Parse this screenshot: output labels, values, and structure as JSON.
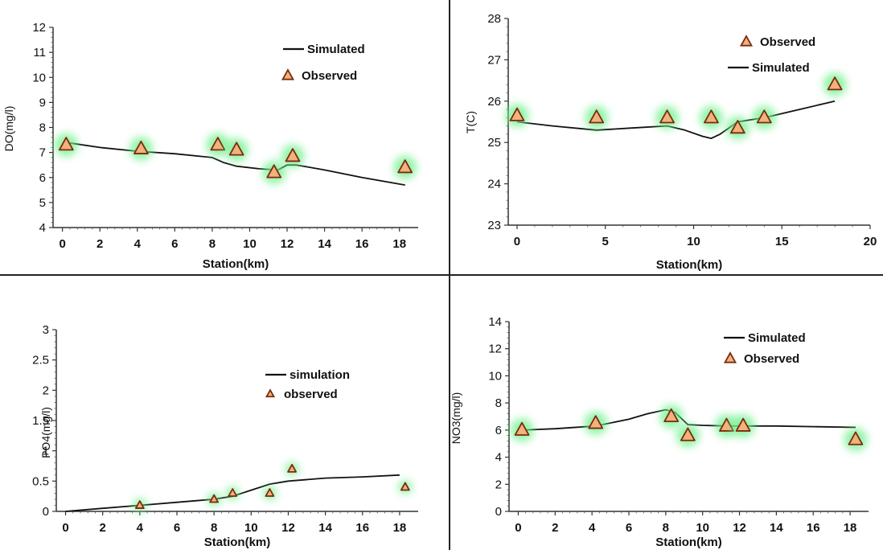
{
  "colors": {
    "line": "#111111",
    "marker_fill": "#f2b27a",
    "marker_stroke": "#7a2a10",
    "marker_glow": "#6df08a",
    "divider": "#222222"
  },
  "chart_data": [
    {
      "type": "line",
      "xlabel": "Station(km)",
      "ylabel": "DO(mg/l)",
      "xlim": [
        -0.5,
        19
      ],
      "ylim": [
        4,
        12
      ],
      "xticks": [
        "0",
        "2",
        "4",
        "6",
        "8",
        "10",
        "12",
        "14",
        "16",
        "18"
      ],
      "yticks": [
        "4",
        "5",
        "6",
        "7",
        "8",
        "9",
        "10",
        "11",
        "12"
      ],
      "legend_position": "top-right",
      "series": [
        {
          "name": "Simulated",
          "kind": "line",
          "x": [
            0.2,
            2,
            4,
            6,
            8,
            8.6,
            9.3,
            10.5,
            11.5,
            12,
            12.5,
            14,
            16,
            18.3
          ],
          "y": [
            7.4,
            7.2,
            7.05,
            6.95,
            6.8,
            6.6,
            6.45,
            6.35,
            6.3,
            6.5,
            6.5,
            6.3,
            6.0,
            5.7
          ]
        },
        {
          "name": "Observed",
          "kind": "marker",
          "x": [
            0.2,
            4.2,
            8.3,
            9.3,
            11.3,
            12.3,
            18.3
          ],
          "y": [
            7.3,
            7.15,
            7.3,
            7.1,
            6.2,
            6.85,
            6.4
          ]
        }
      ]
    },
    {
      "type": "line",
      "xlabel": "Station(km)",
      "ylabel": "T(C)",
      "xlim": [
        -0.5,
        20
      ],
      "ylim": [
        23,
        28
      ],
      "xticks": [
        "0",
        "5",
        "10",
        "15",
        "20"
      ],
      "yticks": [
        "23",
        "24",
        "25",
        "26",
        "27",
        "28"
      ],
      "legend_position": "top-right",
      "series": [
        {
          "name": "Observed",
          "kind": "marker",
          "x": [
            0,
            4.5,
            8.5,
            11,
            12.5,
            14,
            18
          ],
          "y": [
            25.65,
            25.6,
            25.6,
            25.6,
            25.35,
            25.6,
            26.4
          ]
        },
        {
          "name": "Simulated",
          "kind": "line",
          "x": [
            0,
            2,
            4.5,
            6.5,
            8.5,
            9.5,
            10.5,
            11,
            11.5,
            12.5,
            14,
            16,
            18
          ],
          "y": [
            25.5,
            25.4,
            25.3,
            25.35,
            25.4,
            25.3,
            25.15,
            25.1,
            25.2,
            25.5,
            25.6,
            25.8,
            26.0
          ]
        }
      ]
    },
    {
      "type": "line",
      "xlabel": "Station(km)",
      "ylabel": "PO4(mg/l)",
      "xlim": [
        -0.5,
        19
      ],
      "ylim": [
        0,
        3
      ],
      "xticks": [
        "0",
        "2",
        "4",
        "6",
        "8",
        "10",
        "12",
        "14",
        "16",
        "18"
      ],
      "yticks": [
        "0",
        "0.5",
        "1",
        "1.5",
        "2",
        "2.5",
        "3"
      ],
      "legend_position": "right",
      "series": [
        {
          "name": "simulation",
          "kind": "line",
          "x": [
            0,
            2,
            4,
            6,
            8,
            9,
            10,
            11,
            12,
            14,
            16,
            18
          ],
          "y": [
            0,
            0.05,
            0.1,
            0.15,
            0.2,
            0.25,
            0.35,
            0.45,
            0.5,
            0.55,
            0.57,
            0.6
          ]
        },
        {
          "name": "observed",
          "kind": "marker",
          "x": [
            4,
            8,
            9,
            11,
            12.2,
            18.3
          ],
          "y": [
            0.1,
            0.2,
            0.3,
            0.3,
            0.7,
            0.4
          ]
        }
      ]
    },
    {
      "type": "line",
      "xlabel": "Station(km)",
      "ylabel": "NO3(mg/l)",
      "xlim": [
        -0.5,
        19
      ],
      "ylim": [
        0,
        14
      ],
      "xticks": [
        "0",
        "2",
        "4",
        "6",
        "8",
        "10",
        "12",
        "14",
        "16",
        "18"
      ],
      "yticks": [
        "0",
        "2",
        "4",
        "6",
        "8",
        "10",
        "12",
        "14"
      ],
      "legend_position": "top-right",
      "series": [
        {
          "name": "Simulated",
          "kind": "line",
          "x": [
            0.2,
            2,
            4.2,
            6,
            7,
            8,
            8.5,
            9.2,
            10,
            11.3,
            12.2,
            14,
            16,
            18.3
          ],
          "y": [
            6.0,
            6.1,
            6.3,
            6.8,
            7.2,
            7.5,
            7.3,
            6.4,
            6.35,
            6.3,
            6.3,
            6.3,
            6.25,
            6.2
          ]
        },
        {
          "name": "Observed",
          "kind": "marker",
          "x": [
            0.2,
            4.2,
            8.3,
            9.2,
            11.3,
            12.2,
            18.3
          ],
          "y": [
            6.0,
            6.5,
            7.0,
            5.6,
            6.3,
            6.3,
            5.3
          ]
        }
      ]
    }
  ]
}
